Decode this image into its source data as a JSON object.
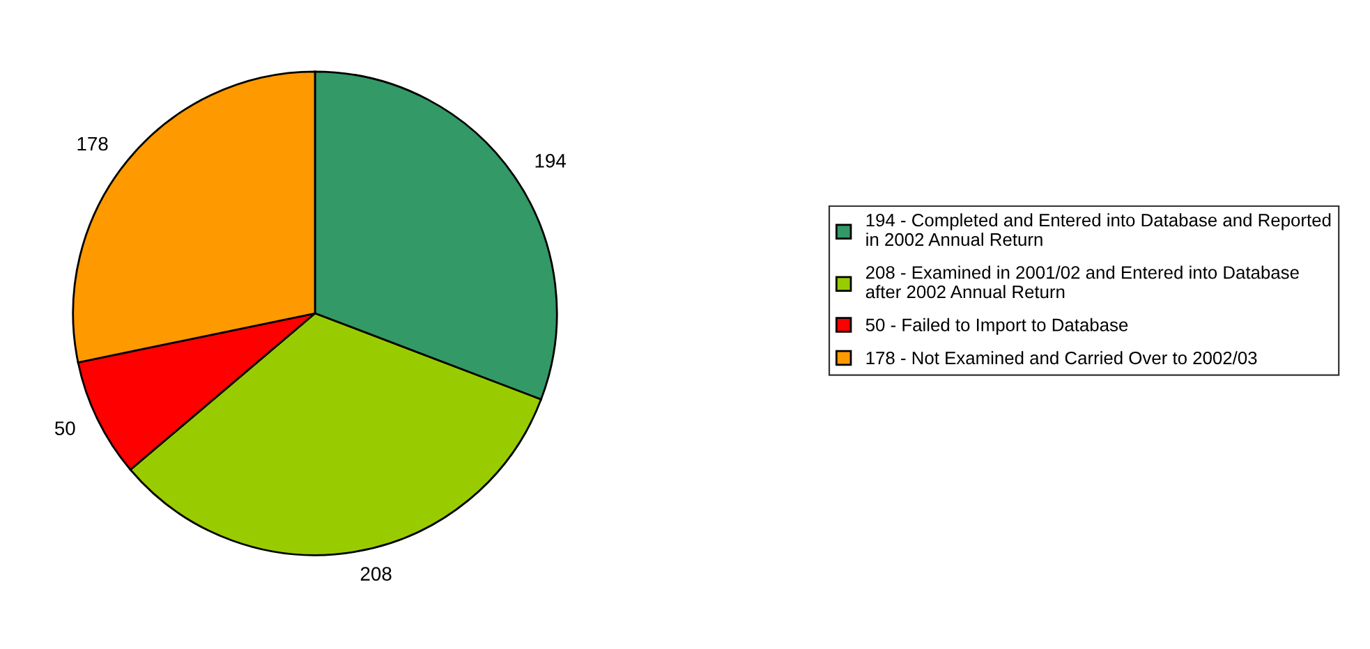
{
  "chart_data": {
    "type": "pie",
    "categories": [
      "194 - Completed and Entered into Database and Reported\nin 2002 Annual Return",
      "208 - Examined in 2001/02 and Entered into Database\nafter 2002 Annual Return",
      "50 - Failed to Import to Database",
      "178 - Not Examined and Carried Over to 2002/03"
    ],
    "values": [
      194,
      208,
      50,
      178
    ],
    "colors": [
      "#339966",
      "#99cc00",
      "#ff0000",
      "#ff9900"
    ],
    "data_labels": true,
    "legend": "right"
  }
}
